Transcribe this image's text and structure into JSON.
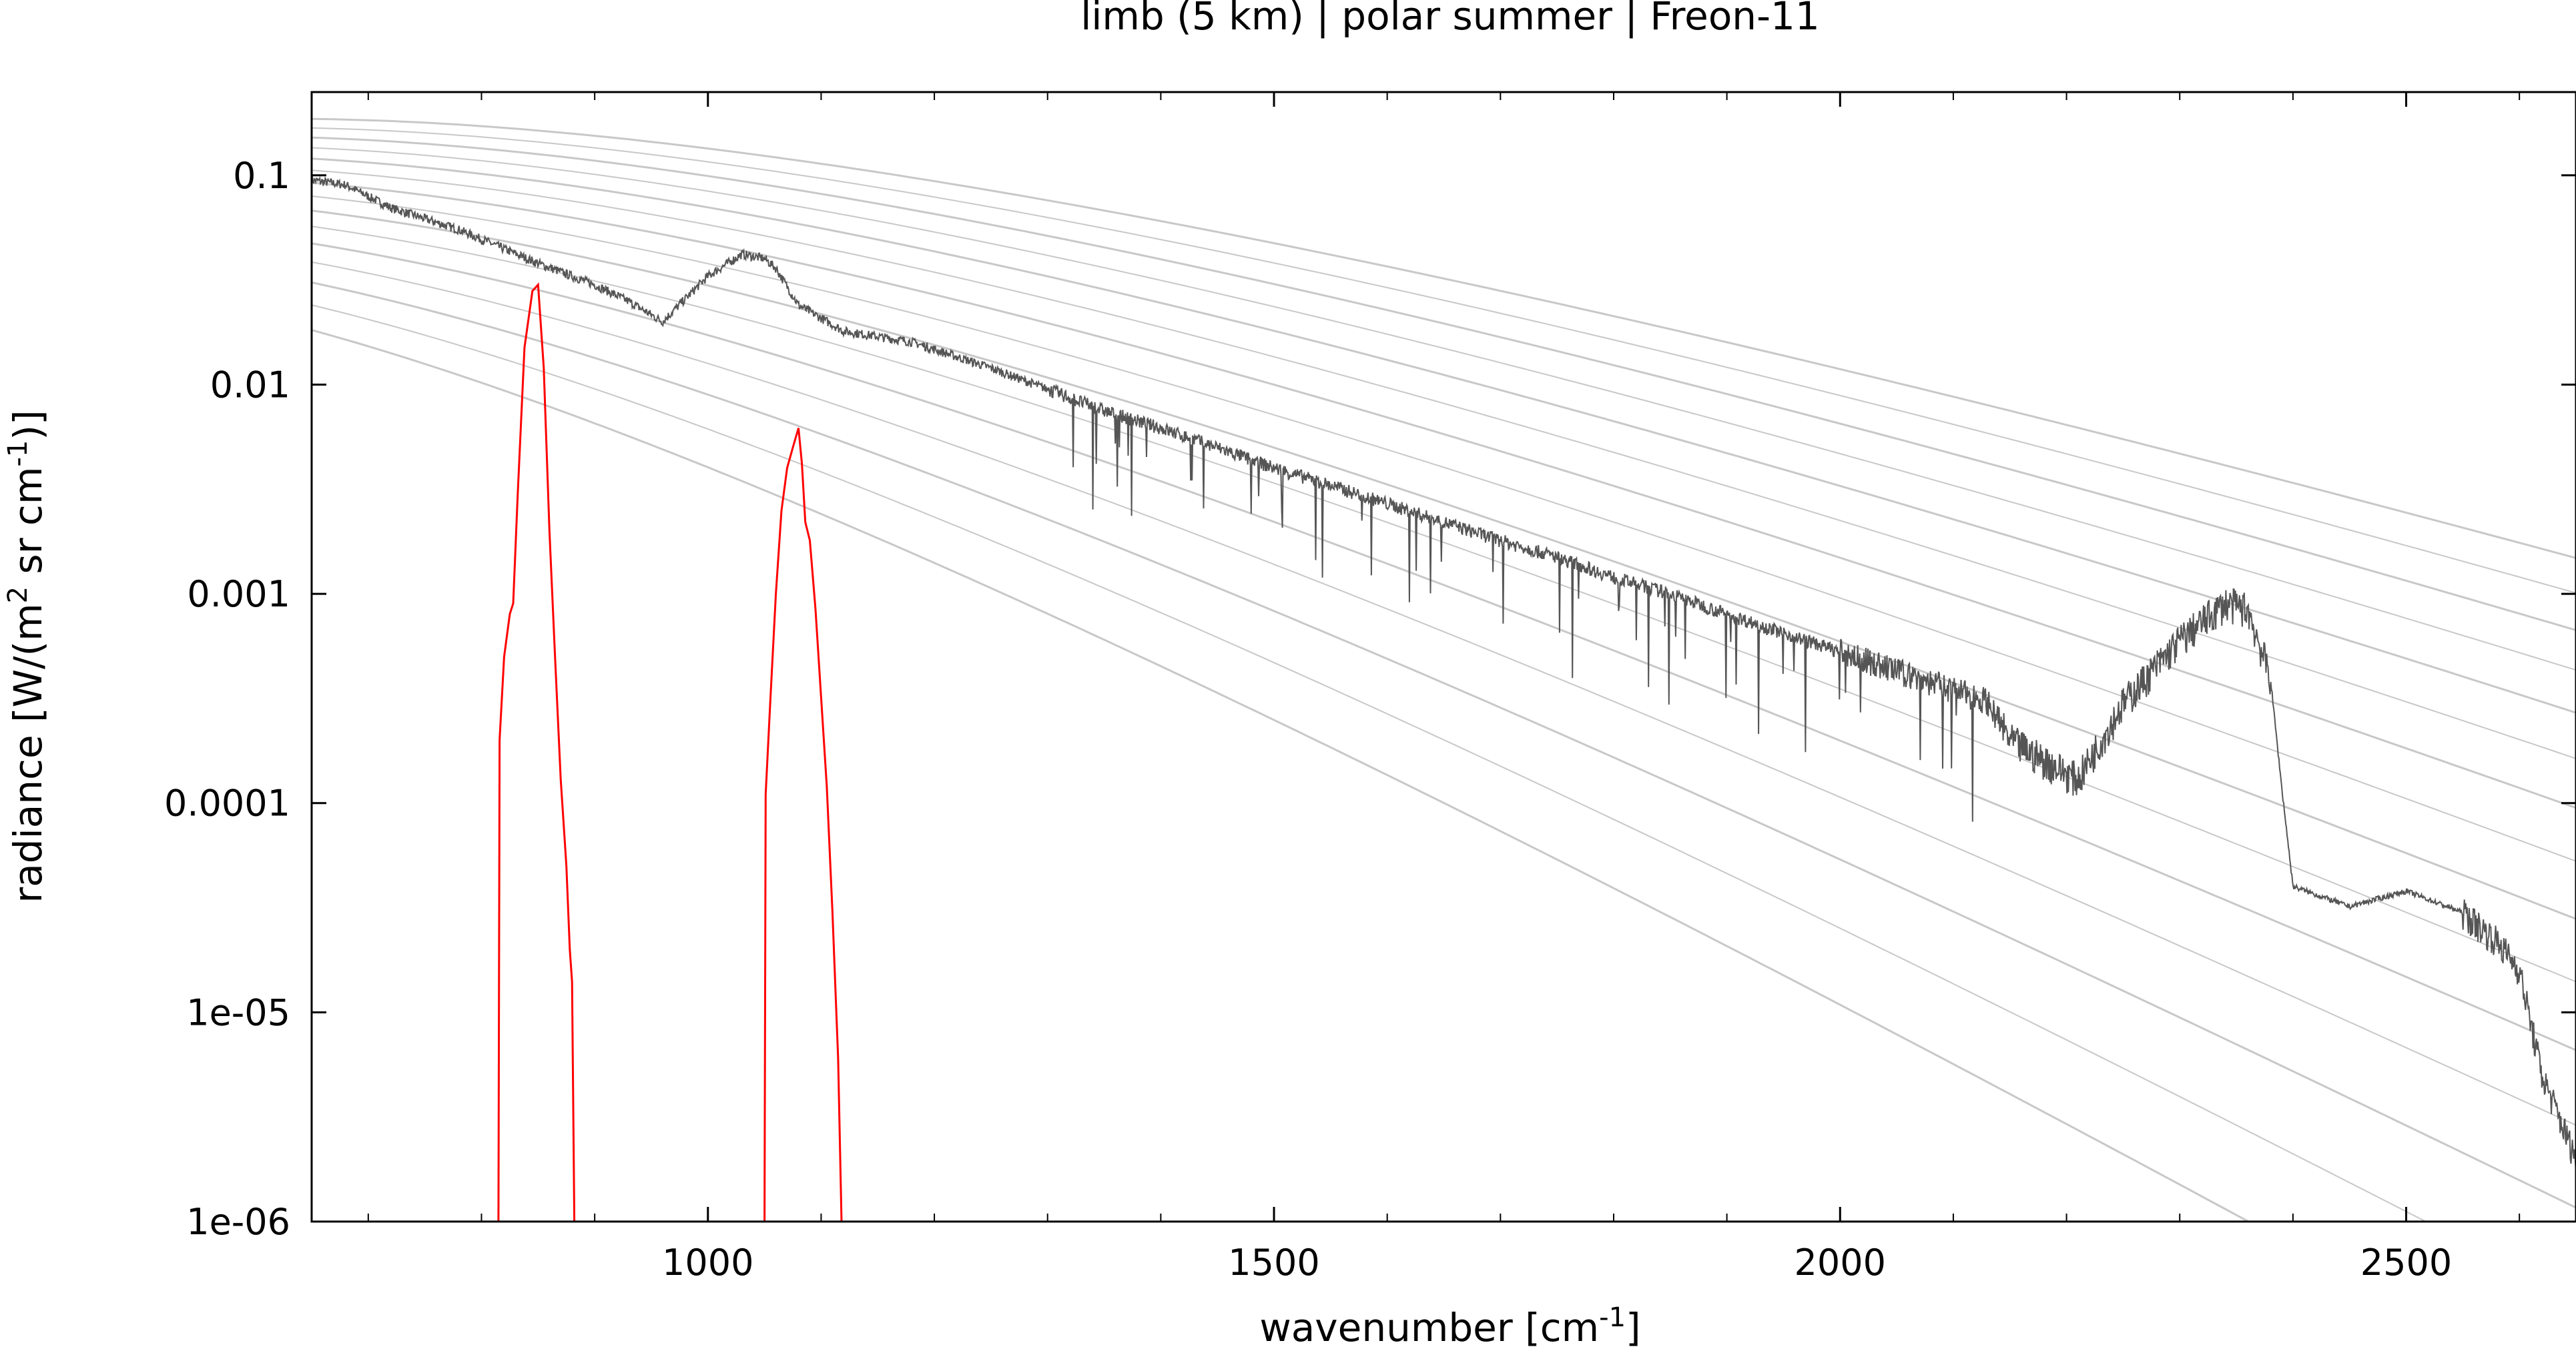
{
  "chart_data": {
    "type": "line",
    "title": "limb (5 km) | polar summer | Freon-11",
    "xlabel": "wavenumber [cm",
    "xlabel_sup": "-1",
    "xlabel_end": "]",
    "ylabel": "radiance [W/(m",
    "ylabel_sup1": "2",
    "ylabel_mid": " sr cm",
    "ylabel_sup2": "-1",
    "ylabel_end": ")]",
    "xlim": [
      650,
      2650
    ],
    "ylim": [
      1e-06,
      0.25
    ],
    "y_scale": "log",
    "grid": false,
    "x_ticks": [
      1000,
      1500,
      2000,
      2500
    ],
    "x_tick_labels": [
      "1000",
      "1500",
      "2000",
      "2500"
    ],
    "y_ticks": [
      0.1,
      0.01,
      0.001,
      0.0001,
      1e-05,
      1e-06
    ],
    "y_tick_labels": [
      "0.1",
      "0.01",
      "0.001",
      "0.0001",
      "1e-05",
      "1e-06"
    ],
    "colors": {
      "total_radiance": "#555555",
      "freon11_contribution": "#ff0000",
      "planck_reference": "#c8c8c8"
    },
    "series": [
      {
        "role": "total_radiance",
        "x": [
          650,
          680,
          720,
          780,
          850,
          900,
          930,
          960,
          1000,
          1030,
          1050,
          1060,
          1080,
          1120,
          1180,
          1250,
          1300,
          1350,
          1400,
          1450,
          1500,
          1550,
          1600,
          1650,
          1700,
          1750,
          1800,
          1850,
          1900,
          1950,
          2000,
          2050,
          2080,
          2100,
          2130,
          2150,
          2180,
          2210,
          2250,
          2300,
          2340,
          2360,
          2380,
          2390,
          2400,
          2450,
          2500,
          2550,
          2580,
          2600,
          2620,
          2650
        ],
        "y": [
          0.095,
          0.09,
          0.07,
          0.055,
          0.038,
          0.03,
          0.025,
          0.02,
          0.033,
          0.042,
          0.04,
          0.036,
          0.024,
          0.018,
          0.016,
          0.012,
          0.0095,
          0.0075,
          0.0062,
          0.005,
          0.004,
          0.0033,
          0.0027,
          0.0022,
          0.0018,
          0.0015,
          0.0012,
          0.001,
          0.0008,
          0.00065,
          0.00053,
          0.00043,
          0.00038,
          0.00035,
          0.00031,
          0.0002,
          0.00016,
          0.00013,
          0.0003,
          0.0006,
          0.0009,
          0.00085,
          0.0004,
          0.00012,
          4e-05,
          3.2e-05,
          3.8e-05,
          3e-05,
          2.2e-05,
          1.6e-05,
          5e-06,
          2e-06
        ]
      },
      {
        "role": "freon11_contribution",
        "segments": [
          {
            "x": [
              815,
              816,
              820,
              825,
              828,
              832,
              838,
              845,
              850,
              855,
              860,
              865,
              870,
              875,
              878,
              880,
              882
            ],
            "y": [
              1e-06,
              0.0002,
              0.0005,
              0.0008,
              0.0009,
              0.003,
              0.015,
              0.028,
              0.03,
              0.012,
              0.002,
              0.0005,
              0.00013,
              5e-05,
              2e-05,
              1.4e-05,
              1e-06
            ]
          },
          {
            "x": [
              1050,
              1051,
              1055,
              1060,
              1065,
              1070,
              1075,
              1080,
              1083,
              1086,
              1090,
              1095,
              1100,
              1105,
              1110,
              1115,
              1118
            ],
            "y": [
              1e-06,
              0.00011,
              0.0003,
              0.001,
              0.0025,
              0.004,
              0.005,
              0.0062,
              0.0042,
              0.0022,
              0.0018,
              0.00085,
              0.00032,
              0.00012,
              3e-05,
              6e-06,
              1e-06
            ]
          }
        ]
      },
      {
        "role": "planck_reference",
        "temperatures_K": [
          180,
          190,
          200,
          210,
          220,
          230,
          240,
          250,
          260,
          270,
          280,
          290,
          300,
          310,
          320
        ]
      }
    ]
  }
}
